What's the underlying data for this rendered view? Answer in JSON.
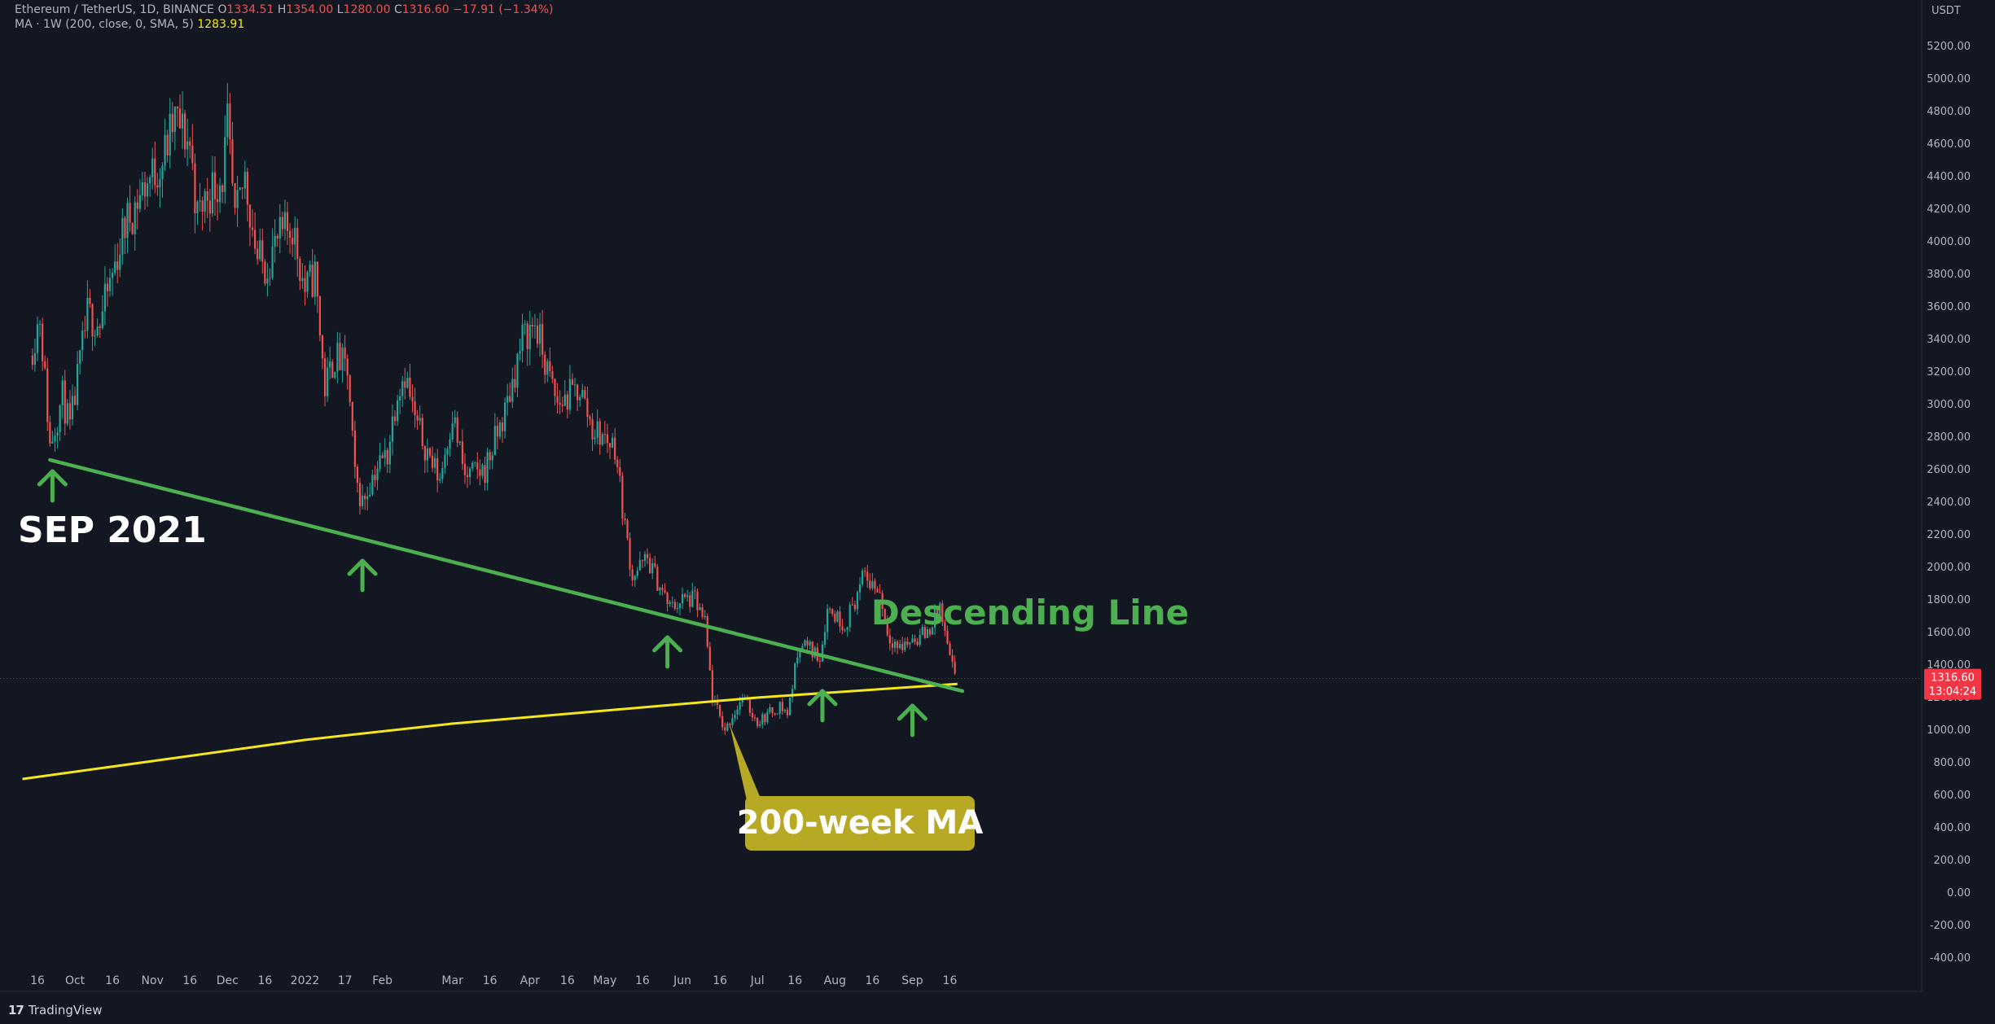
{
  "header": {
    "symbol": "Ethereum / TetherUS, 1D, BINANCE",
    "o_label": "O",
    "o_value": "1334.51",
    "h_label": "H",
    "h_value": "1354.00",
    "l_label": "L",
    "l_value": "1280.00",
    "c_label": "C",
    "c_value": "1316.60",
    "change": "−17.91 (−1.34%)",
    "ma_label": "MA · 1W (200, close, 0, SMA, 5)",
    "ma_value": "1283.91"
  },
  "footer": {
    "logo": "17",
    "brand": "TradingView"
  },
  "colors": {
    "background": "#131722",
    "up": "#26a69a",
    "down": "#ef5350",
    "support_line": "#4caf50",
    "ma_line": "#f5e71a",
    "price_tag": "#f23645",
    "ma_label_box": "#b8a925"
  },
  "chart_data": {
    "type": "candlestick",
    "currency_label": "USDT",
    "ylim": [
      -450,
      5350
    ],
    "y_ticks": [
      5200,
      5000,
      4800,
      4600,
      4400,
      4200,
      4000,
      3800,
      3600,
      3400,
      3200,
      3000,
      2800,
      2600,
      2400,
      2200,
      2000,
      1800,
      1600,
      1400,
      1200,
      1000,
      800,
      600,
      400,
      200,
      0,
      -200,
      -400
    ],
    "x_ticks": [
      {
        "label": "16",
        "date": "2021-09-16"
      },
      {
        "label": "Oct",
        "date": "2021-10-01"
      },
      {
        "label": "16",
        "date": "2021-10-16"
      },
      {
        "label": "Nov",
        "date": "2021-11-01"
      },
      {
        "label": "16",
        "date": "2021-11-16"
      },
      {
        "label": "Dec",
        "date": "2021-12-01"
      },
      {
        "label": "16",
        "date": "2021-12-16"
      },
      {
        "label": "2022",
        "date": "2022-01-01"
      },
      {
        "label": "17",
        "date": "2022-01-17"
      },
      {
        "label": "Feb",
        "date": "2022-02-01"
      },
      {
        "label": "Mar",
        "date": "2022-03-01"
      },
      {
        "label": "16",
        "date": "2022-03-16"
      },
      {
        "label": "Apr",
        "date": "2022-04-01"
      },
      {
        "label": "16",
        "date": "2022-04-16"
      },
      {
        "label": "May",
        "date": "2022-05-01"
      },
      {
        "label": "16",
        "date": "2022-05-16"
      },
      {
        "label": "Jun",
        "date": "2022-06-01"
      },
      {
        "label": "16",
        "date": "2022-06-16"
      },
      {
        "label": "Jul",
        "date": "2022-07-01"
      },
      {
        "label": "16",
        "date": "2022-07-16"
      },
      {
        "label": "Aug",
        "date": "2022-08-01"
      },
      {
        "label": "16",
        "date": "2022-08-16"
      },
      {
        "label": "Sep",
        "date": "2022-09-01"
      },
      {
        "label": "16",
        "date": "2022-09-16"
      }
    ],
    "price_path": [
      {
        "date": "2021-09-13",
        "close": 3300
      },
      {
        "date": "2021-09-17",
        "close": 3550
      },
      {
        "date": "2021-09-21",
        "close": 2750
      },
      {
        "date": "2021-09-26",
        "close": 3050
      },
      {
        "date": "2021-09-29",
        "close": 2850
      },
      {
        "date": "2021-10-06",
        "close": 3550
      },
      {
        "date": "2021-10-11",
        "close": 3500
      },
      {
        "date": "2021-10-21",
        "close": 4100
      },
      {
        "date": "2021-10-29",
        "close": 4350
      },
      {
        "date": "2021-11-05",
        "close": 4500
      },
      {
        "date": "2021-11-10",
        "close": 4750
      },
      {
        "date": "2021-11-16",
        "close": 4600
      },
      {
        "date": "2021-11-19",
        "close": 4150
      },
      {
        "date": "2021-11-23",
        "close": 4300
      },
      {
        "date": "2021-11-29",
        "close": 4400
      },
      {
        "date": "2021-12-01",
        "close": 4700
      },
      {
        "date": "2021-12-04",
        "close": 4100
      },
      {
        "date": "2021-12-08",
        "close": 4400
      },
      {
        "date": "2021-12-13",
        "close": 3900
      },
      {
        "date": "2021-12-16",
        "close": 3850
      },
      {
        "date": "2021-12-21",
        "close": 4000
      },
      {
        "date": "2021-12-27",
        "close": 4100
      },
      {
        "date": "2022-01-01",
        "close": 3700
      },
      {
        "date": "2022-01-05",
        "close": 3800
      },
      {
        "date": "2022-01-09",
        "close": 3100
      },
      {
        "date": "2022-01-13",
        "close": 3300
      },
      {
        "date": "2022-01-18",
        "close": 3200
      },
      {
        "date": "2022-01-21",
        "close": 2550
      },
      {
        "date": "2022-01-24",
        "close": 2400
      },
      {
        "date": "2022-01-29",
        "close": 2600
      },
      {
        "date": "2022-02-03",
        "close": 2700
      },
      {
        "date": "2022-02-07",
        "close": 3100
      },
      {
        "date": "2022-02-10",
        "close": 3200
      },
      {
        "date": "2022-02-14",
        "close": 2900
      },
      {
        "date": "2022-02-22",
        "close": 2600
      },
      {
        "date": "2022-02-24",
        "close": 2550
      },
      {
        "date": "2022-03-01",
        "close": 2950
      },
      {
        "date": "2022-03-06",
        "close": 2550
      },
      {
        "date": "2022-03-14",
        "close": 2600
      },
      {
        "date": "2022-03-22",
        "close": 2950
      },
      {
        "date": "2022-03-29",
        "close": 3400
      },
      {
        "date": "2022-04-03",
        "close": 3500
      },
      {
        "date": "2022-04-08",
        "close": 3200
      },
      {
        "date": "2022-04-12",
        "close": 3000
      },
      {
        "date": "2022-04-21",
        "close": 3100
      },
      {
        "date": "2022-04-26",
        "close": 2850
      },
      {
        "date": "2022-05-05",
        "close": 2750
      },
      {
        "date": "2022-05-09",
        "close": 2250
      },
      {
        "date": "2022-05-12",
        "close": 1950
      },
      {
        "date": "2022-05-18",
        "close": 2050
      },
      {
        "date": "2022-05-27",
        "close": 1750
      },
      {
        "date": "2022-06-01",
        "close": 1800
      },
      {
        "date": "2022-06-06",
        "close": 1800
      },
      {
        "date": "2022-06-10",
        "close": 1650
      },
      {
        "date": "2022-06-13",
        "close": 1200
      },
      {
        "date": "2022-06-18",
        "close": 1000
      },
      {
        "date": "2022-06-25",
        "close": 1200
      },
      {
        "date": "2022-07-01",
        "close": 1050
      },
      {
        "date": "2022-07-10",
        "close": 1150
      },
      {
        "date": "2022-07-13",
        "close": 1100
      },
      {
        "date": "2022-07-18",
        "close": 1550
      },
      {
        "date": "2022-07-26",
        "close": 1450
      },
      {
        "date": "2022-07-29",
        "close": 1750
      },
      {
        "date": "2022-08-05",
        "close": 1650
      },
      {
        "date": "2022-08-13",
        "close": 1950
      },
      {
        "date": "2022-08-19",
        "close": 1850
      },
      {
        "date": "2022-08-22",
        "close": 1600
      },
      {
        "date": "2022-08-27",
        "close": 1500
      },
      {
        "date": "2022-08-31",
        "close": 1550
      },
      {
        "date": "2022-09-07",
        "close": 1600
      },
      {
        "date": "2022-09-12",
        "close": 1750
      },
      {
        "date": "2022-09-15",
        "close": 1500
      },
      {
        "date": "2022-09-18",
        "close": 1320
      }
    ],
    "last_price": {
      "value": 1316.6,
      "label": "1316.60",
      "countdown": "13:04:24"
    },
    "descending_line": {
      "label": "Descending Line",
      "start": {
        "date": "2021-09-21",
        "value": 2660
      },
      "end": {
        "date": "2022-09-21",
        "value": 1240
      }
    },
    "ma_200w": {
      "label": "200-week MA",
      "points": [
        {
          "date": "2021-09-10",
          "value": 700
        },
        {
          "date": "2021-11-01",
          "value": 810
        },
        {
          "date": "2022-01-01",
          "value": 940
        },
        {
          "date": "2022-03-01",
          "value": 1040
        },
        {
          "date": "2022-05-01",
          "value": 1120
        },
        {
          "date": "2022-07-01",
          "value": 1200
        },
        {
          "date": "2022-09-19",
          "value": 1284
        }
      ]
    },
    "annotations": [
      {
        "text": "SEP 2021"
      }
    ],
    "support_arrows": [
      {
        "date": "2021-09-22",
        "value": 2600
      },
      {
        "date": "2022-01-24",
        "value": 2050
      },
      {
        "date": "2022-05-26",
        "value": 1580
      },
      {
        "date": "2022-07-27",
        "value": 1250
      },
      {
        "date": "2022-09-01",
        "value": 1160
      }
    ]
  }
}
